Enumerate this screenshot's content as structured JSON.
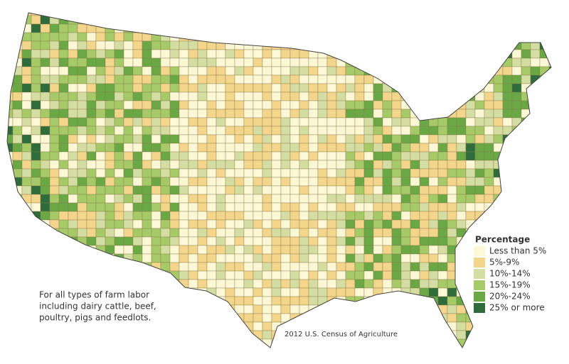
{
  "map": {
    "legend": {
      "title": "Percentage",
      "items": [
        {
          "label": "Less than 5%",
          "color": "#fcf8d6"
        },
        {
          "label": "5%-9%",
          "color": "#f3d58c"
        },
        {
          "label": "10%-14%",
          "color": "#d5dea2"
        },
        {
          "label": "15%-19%",
          "color": "#a6ca68"
        },
        {
          "label": "20%-24%",
          "color": "#69a845"
        },
        {
          "label": "25% or more",
          "color": "#2f6c3b"
        }
      ]
    },
    "note": [
      "For all types of farm labor",
      "including dairy cattle, beef,",
      "poultry, pigs and feedlots."
    ],
    "source": "2012 U.S. Census of Agriculture"
  }
}
